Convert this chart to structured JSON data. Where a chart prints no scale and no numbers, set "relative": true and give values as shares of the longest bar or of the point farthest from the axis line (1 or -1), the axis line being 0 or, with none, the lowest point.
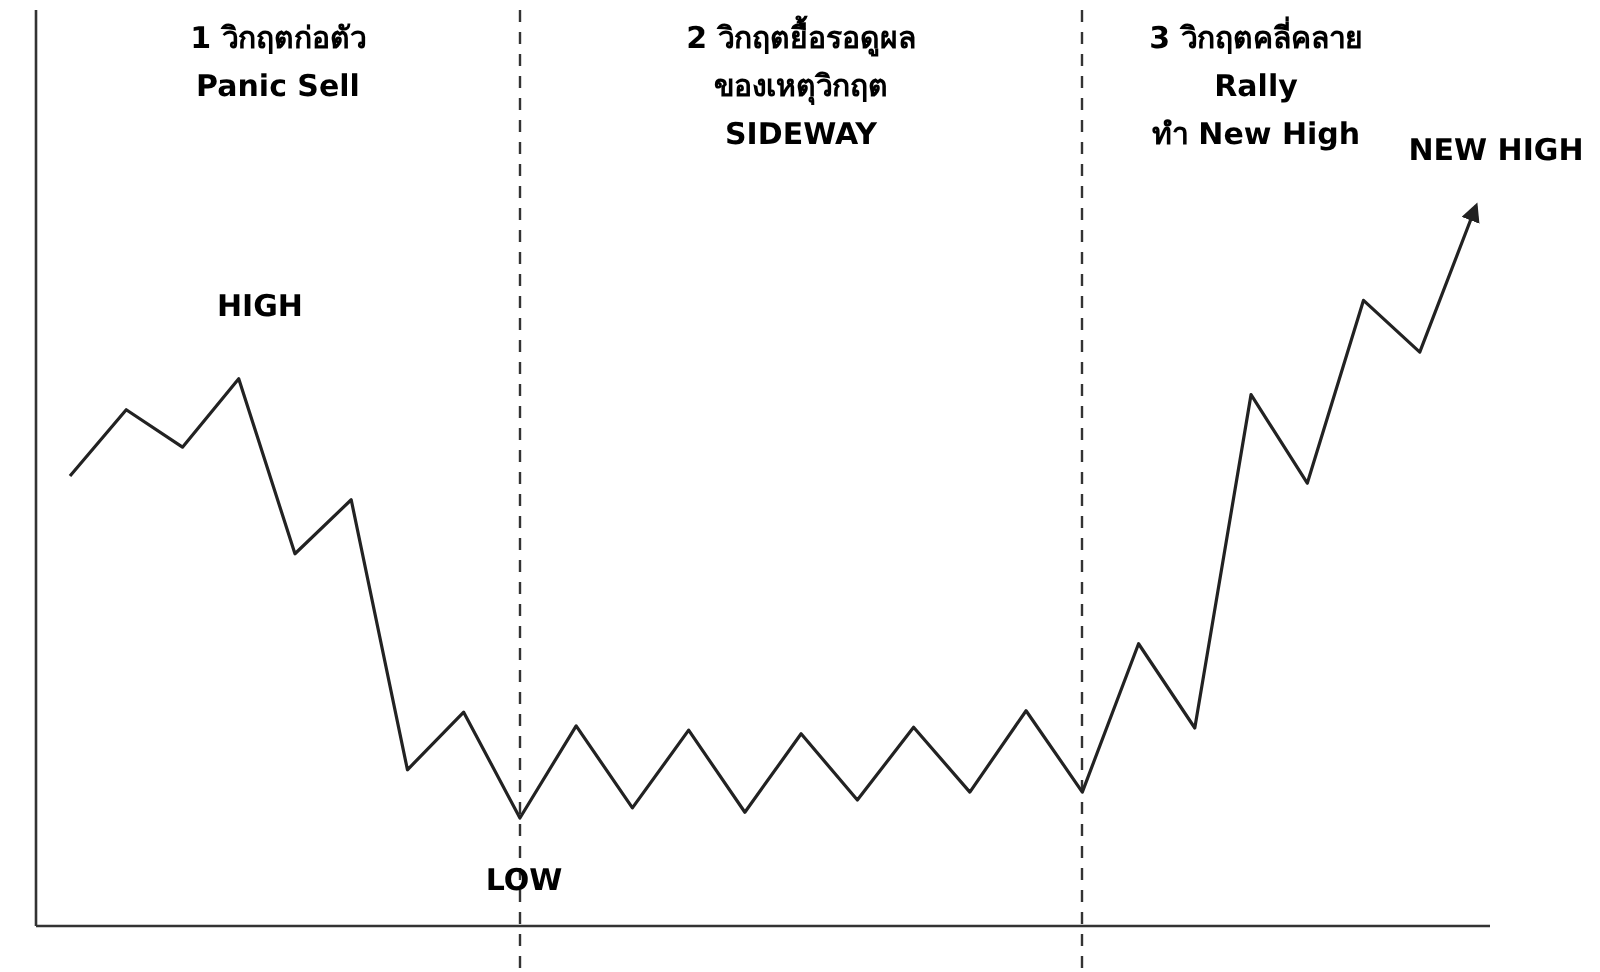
{
  "chart_data": {
    "type": "line",
    "relative": true,
    "marker": "none",
    "line_style": "solid",
    "categories": [
      null,
      null,
      null,
      null,
      null,
      null,
      null,
      null,
      null,
      null,
      null,
      null,
      null,
      null,
      null,
      null,
      null,
      null,
      null,
      null,
      null,
      null,
      null,
      null,
      null,
      null
    ],
    "series": [
      {
        "color": "#222222",
        "values": [
          0.625,
          0.717,
          0.665,
          0.76,
          0.517,
          0.592,
          0.217,
          0.297,
          0.15,
          0.278,
          0.164,
          0.272,
          0.158,
          0.267,
          0.175,
          0.276,
          0.186,
          0.299,
          0.186,
          0.392,
          0.275,
          0.738,
          0.615,
          0.869,
          0.797,
          1
        ]
      }
    ],
    "annotations": [
      "1 วิกฤตก่อตัว\nPanic Sell",
      "2 วิกฤตยื้อรอดูผล\nของเหตุวิกฤต\nSIDEWAY",
      "3 วิกฤตคลี่คลาย\nRally\nทำ New High",
      "HIGH",
      "LOW",
      "NEW HIGH"
    ]
  }
}
